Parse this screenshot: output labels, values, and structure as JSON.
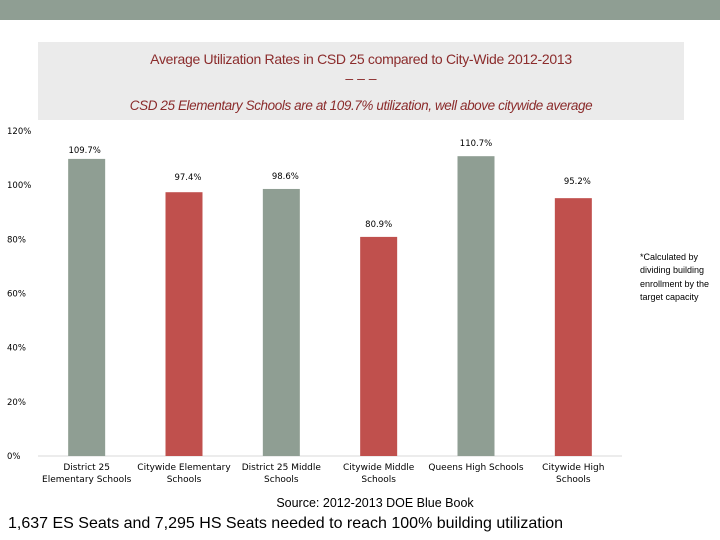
{
  "title": "Average Utilization Rates in CSD 25 compared to City-Wide 2012-2013",
  "title_dashes": "– – –",
  "subtitle": "CSD 25 Elementary Schools are  at 109.7% utilization, well above citywide average",
  "note": "*Calculated by dividing building enrollment by the target capacity",
  "source": "Source: 2012-2013 DOE Blue Book",
  "footer": "1,637 ES Seats and 7,295 HS Seats needed to reach 100% building utilization",
  "colors": {
    "district": "#8f9e93",
    "citywide": "#c0504d",
    "band": "#8f9e93",
    "title": "#8b2c2c"
  },
  "chart_data": {
    "type": "bar",
    "categories": [
      [
        "District 25",
        "Elementary Schools"
      ],
      [
        "Citywide Elementary",
        "Schools"
      ],
      [
        "District 25 Middle",
        "Schools"
      ],
      [
        "Citywide Middle",
        "Schools"
      ],
      [
        "Queens High Schools"
      ],
      [
        "Citywide High",
        "Schools"
      ]
    ],
    "values": [
      109.7,
      97.4,
      98.6,
      80.9,
      110.7,
      95.2
    ],
    "data_labels": [
      "109.7%",
      "97.4%",
      "98.6%",
      "80.9%",
      "110.7%",
      "95.2%"
    ],
    "bar_colors": [
      "#8f9e93",
      "#c0504d",
      "#8f9e93",
      "#c0504d",
      "#8f9e93",
      "#c0504d"
    ],
    "ylim": [
      0,
      120
    ],
    "yticks": [
      "0%",
      "20%",
      "40%",
      "60%",
      "80%",
      "100%",
      "120%"
    ],
    "grid": false,
    "legend": "none"
  }
}
